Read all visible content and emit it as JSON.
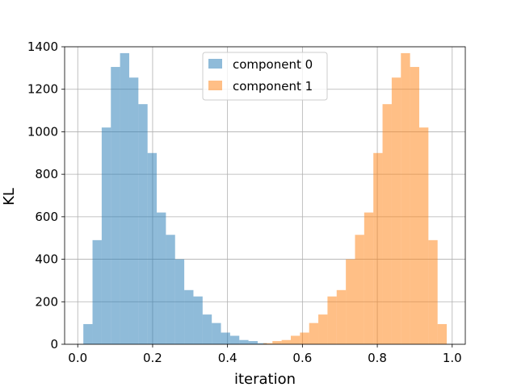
{
  "chart_data": {
    "type": "bar",
    "subtype": "histogram",
    "xlabel": "iteration",
    "ylabel": "KL",
    "xlim": [
      -0.035,
      1.035
    ],
    "ylim": [
      0,
      1400
    ],
    "xticks": [
      0.0,
      0.2,
      0.4,
      0.6,
      0.8,
      1.0
    ],
    "xtick_labels": [
      "0.0",
      "0.2",
      "0.4",
      "0.6",
      "0.8",
      "1.0"
    ],
    "yticks": [
      0,
      200,
      400,
      600,
      800,
      1000,
      1200,
      1400
    ],
    "ytick_labels": [
      "0",
      "200",
      "400",
      "600",
      "800",
      "1000",
      "1200",
      "1400"
    ],
    "grid": true,
    "legend_position": "top-center",
    "bin_width": 0.0245,
    "series": [
      {
        "name": "component 0",
        "color": "#1f77b4",
        "opacity": 0.5,
        "bin_starts": [
          0.015,
          0.0395,
          0.064,
          0.0885,
          0.113,
          0.1375,
          0.162,
          0.1865,
          0.211,
          0.2355,
          0.26,
          0.2845,
          0.309,
          0.3335,
          0.358,
          0.3825,
          0.407,
          0.4315,
          0.456,
          0.4805
        ],
        "values": [
          95,
          490,
          1020,
          1305,
          1370,
          1255,
          1130,
          900,
          620,
          515,
          400,
          255,
          225,
          140,
          100,
          55,
          40,
          20,
          15,
          5
        ]
      },
      {
        "name": "component 1",
        "color": "#ff7f0e",
        "opacity": 0.5,
        "bin_starts": [
          0.4955,
          0.52,
          0.5445,
          0.569,
          0.5935,
          0.618,
          0.6425,
          0.667,
          0.6915,
          0.716,
          0.7405,
          0.765,
          0.7895,
          0.814,
          0.8385,
          0.863,
          0.8875,
          0.912,
          0.9365,
          0.961
        ],
        "values": [
          5,
          15,
          20,
          40,
          55,
          100,
          140,
          225,
          255,
          400,
          515,
          620,
          900,
          1130,
          1255,
          1370,
          1305,
          1020,
          490,
          95
        ]
      }
    ]
  }
}
